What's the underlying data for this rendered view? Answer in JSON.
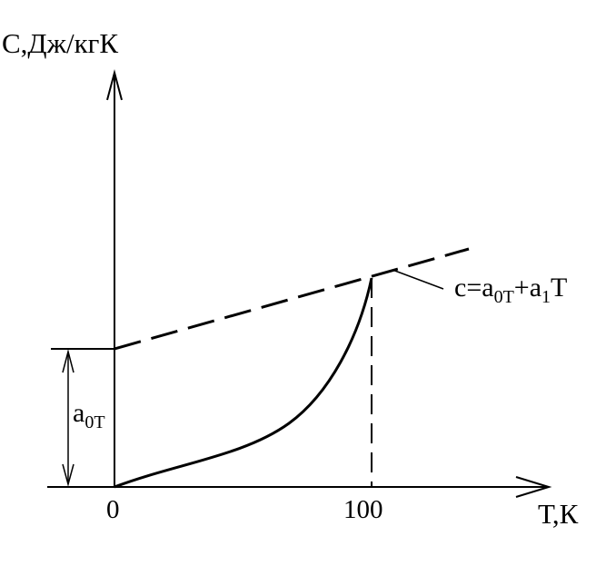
{
  "axes": {
    "y_label": "С,Дж/кгК",
    "x_label": "Т,К",
    "origin_tick": "0",
    "x_tick": "100"
  },
  "annotations": {
    "intercept": {
      "base": "a",
      "sub": "0T"
    },
    "formula": {
      "p1": "c=a",
      "sub1": "0T",
      "p2": "+a",
      "sub2": "1",
      "p3": "T"
    }
  },
  "style": {
    "stroke_color": "#000000",
    "background": "#ffffff"
  }
}
